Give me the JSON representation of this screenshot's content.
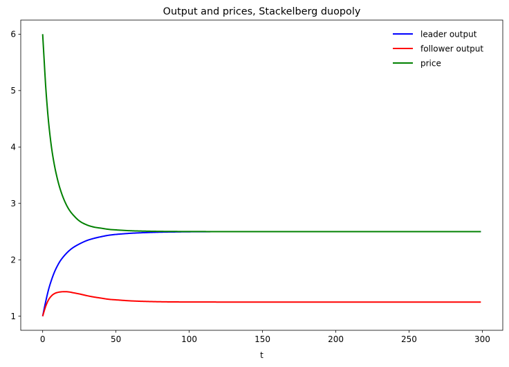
{
  "chart_data": {
    "type": "line",
    "title": "Output and prices, Stackelberg duopoly",
    "xlabel": "t",
    "ylabel": "",
    "xlim": [
      -14.95,
      313.95
    ],
    "ylim": [
      0.75,
      6.25
    ],
    "xticks": [
      0,
      50,
      100,
      150,
      200,
      250,
      300
    ],
    "yticks": [
      1,
      2,
      3,
      4,
      5,
      6
    ],
    "grid": false,
    "legend_position": "top-right",
    "series": [
      {
        "name": "leader output",
        "color": "#0000ff",
        "x": [
          0,
          2,
          4,
          6,
          8,
          10,
          12,
          15,
          18,
          21,
          25,
          30,
          35,
          40,
          45,
          50,
          60,
          70,
          80,
          90,
          100,
          120,
          150,
          200,
          250,
          299
        ],
        "y": [
          1.0,
          1.25,
          1.47,
          1.64,
          1.78,
          1.89,
          1.98,
          2.08,
          2.16,
          2.22,
          2.28,
          2.34,
          2.38,
          2.41,
          2.435,
          2.45,
          2.47,
          2.482,
          2.49,
          2.494,
          2.497,
          2.499,
          2.5,
          2.5,
          2.5,
          2.5
        ]
      },
      {
        "name": "follower output",
        "color": "#ff0000",
        "x": [
          0,
          2,
          4,
          6,
          8,
          10,
          12,
          15,
          18,
          21,
          25,
          30,
          35,
          40,
          45,
          50,
          60,
          70,
          80,
          90,
          100,
          120,
          150,
          200,
          250,
          299
        ],
        "y": [
          1.0,
          1.17,
          1.29,
          1.36,
          1.4,
          1.42,
          1.43,
          1.435,
          1.43,
          1.415,
          1.395,
          1.365,
          1.34,
          1.32,
          1.3,
          1.29,
          1.272,
          1.262,
          1.256,
          1.253,
          1.252,
          1.251,
          1.25,
          1.25,
          1.25,
          1.25
        ]
      },
      {
        "name": "price",
        "color": "#008000",
        "x": [
          0,
          1,
          2,
          3,
          4,
          6,
          8,
          10,
          12,
          15,
          18,
          21,
          25,
          30,
          35,
          40,
          45,
          50,
          60,
          70,
          80,
          90,
          100,
          120,
          150,
          200,
          250,
          299
        ],
        "y": [
          6.0,
          5.55,
          5.1,
          4.75,
          4.45,
          4.0,
          3.68,
          3.44,
          3.25,
          3.04,
          2.89,
          2.79,
          2.69,
          2.62,
          2.58,
          2.56,
          2.54,
          2.53,
          2.515,
          2.508,
          2.504,
          2.502,
          2.501,
          2.5,
          2.5,
          2.5,
          2.5,
          2.5
        ]
      }
    ]
  }
}
